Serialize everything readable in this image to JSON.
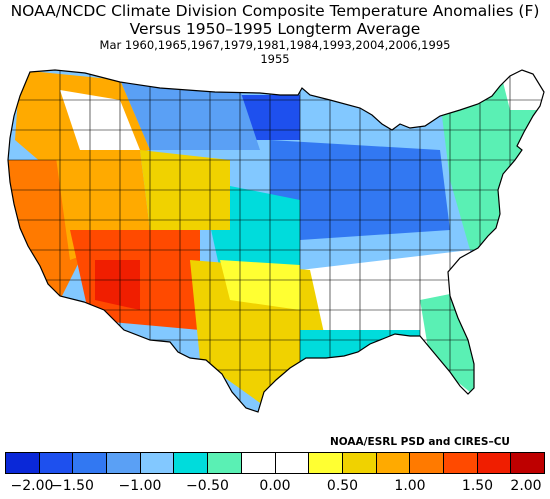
{
  "title": {
    "line1": "NOAA/NCDC Climate Division Composite Temperature Anomalies (F)",
    "line2": "Versus 1950–1995 Longterm Average",
    "line3": "Mar    1960,1965,1967,1979,1981,1984,1993,2004,2006,1995",
    "line4": "1955"
  },
  "credit": "NOAA/ESRL PSD and CIRES–CU",
  "legend": {
    "colors": [
      "#0a28d8",
      "#1e50ee",
      "#3278f2",
      "#5aa0f5",
      "#82c8ff",
      "#00dcdc",
      "#5af0b4",
      "#ffffff",
      "#ffffff",
      "#ffff32",
      "#f0d200",
      "#ffaa00",
      "#ff7a00",
      "#ff4a00",
      "#f01e00",
      "#be0000"
    ],
    "tick_labels": [
      "−2.00",
      "−1.50",
      "−1.00",
      "−0.50",
      "0.00",
      "0.50",
      "1.00",
      "1.50",
      "2.00"
    ]
  },
  "map_colors": {
    "cold_core": "#1e50ee",
    "cold": "#3278f2",
    "cool": "#5aa0f5",
    "cyan": "#00dcdc",
    "light_cyan": "#82c8ff",
    "mint": "#5af0b4",
    "neutral": "#ffffff",
    "yellow": "#ffff32",
    "gold": "#f0d200",
    "orange": "#ffaa00",
    "dark_orange": "#ff7a00",
    "red_orange": "#ff4a00",
    "hot": "#f01e00"
  }
}
